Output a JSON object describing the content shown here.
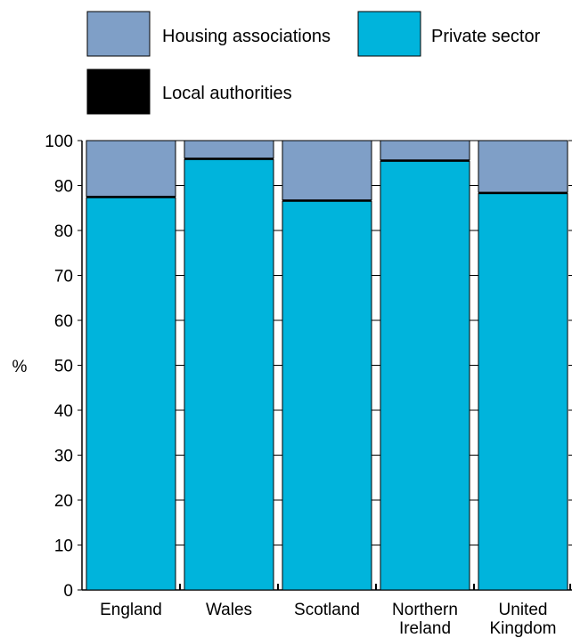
{
  "chart_data": {
    "type": "bar",
    "stacked": true,
    "categories": [
      "England",
      "Wales",
      "Scotland",
      "Northern Ireland",
      "United Kingdom"
    ],
    "category_label_lines": [
      [
        "England"
      ],
      [
        "Wales"
      ],
      [
        "Scotland"
      ],
      [
        "Northern",
        "Ireland"
      ],
      [
        "United",
        "Kingdom"
      ]
    ],
    "series": [
      {
        "name": "Private sector",
        "values": [
          87.3,
          95.8,
          86.5,
          95.4,
          88.2
        ],
        "color": "#00b4dc"
      },
      {
        "name": "Local authorities",
        "values": [
          0.3,
          0.3,
          0.3,
          0.3,
          0.3
        ],
        "color": "#000000"
      },
      {
        "name": "Housing associations",
        "values": [
          12.4,
          3.9,
          13.2,
          4.3,
          11.5
        ],
        "color": "#7f9fc7"
      }
    ],
    "legend": [
      {
        "name": "Housing associations",
        "color": "#7f9fc7"
      },
      {
        "name": "Private sector",
        "color": "#00b4dc"
      },
      {
        "name": "Local authorities",
        "color": "#000000"
      }
    ],
    "legend_position": "top",
    "title": "",
    "xlabel": "",
    "ylabel": "%",
    "ylim": [
      0,
      100
    ],
    "yticks": [
      0,
      10,
      20,
      30,
      40,
      50,
      60,
      70,
      80,
      90,
      100
    ],
    "grid": false
  }
}
